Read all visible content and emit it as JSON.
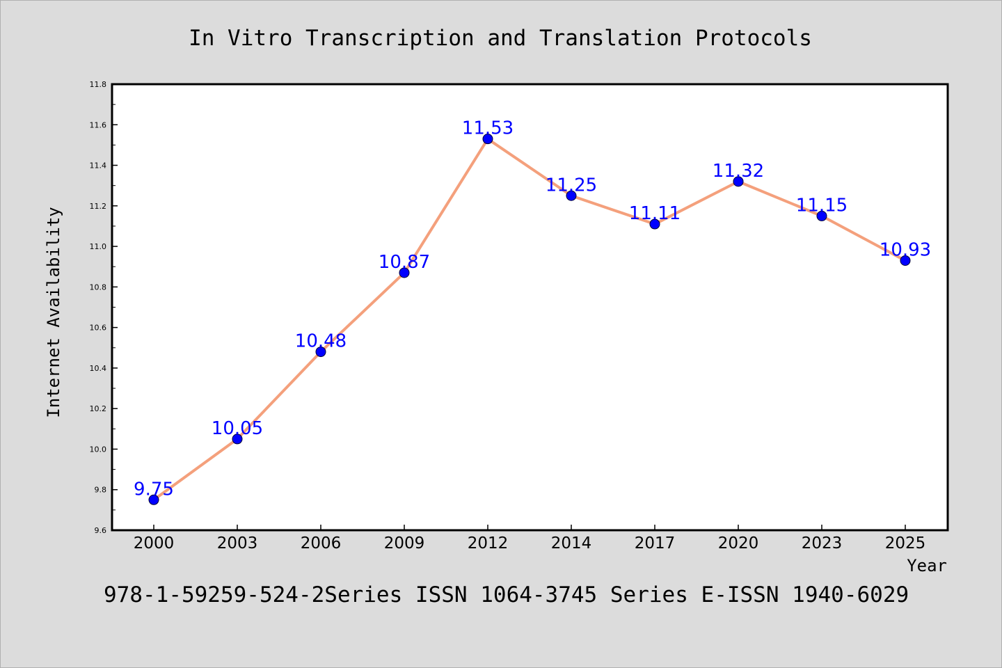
{
  "chart_data": {
    "type": "line",
    "title": "In Vitro Transcription and Translation Protocols",
    "xlabel": "Year",
    "ylabel": "Internet Availability",
    "footer": "978-1-59259-524-2Series ISSN 1064-3745 Series E-ISSN 1940-6029",
    "categories": [
      "2000",
      "2003",
      "2006",
      "2009",
      "2012",
      "2014",
      "2017",
      "2020",
      "2023",
      "2025"
    ],
    "series": [
      {
        "values": [
          9.75,
          10.05,
          10.48,
          10.87,
          11.53,
          11.25,
          11.11,
          11.32,
          11.15,
          10.93
        ],
        "data_labels": [
          "9.75",
          "10.05",
          "10.48",
          "10.87",
          "11.53",
          "11.25",
          "11.11",
          "11.32",
          "11.15",
          "10.93"
        ],
        "line_color": "#f4a07c",
        "marker_color": "#0000ff"
      }
    ],
    "ylim": [
      9.6,
      11.8
    ],
    "yticks": [
      "9.6",
      "9.8",
      "10.0",
      "10.2",
      "10.4",
      "10.6",
      "10.8",
      "11.0",
      "11.2",
      "11.4",
      "11.6",
      "11.8"
    ],
    "grid": false,
    "legend": "none",
    "colors": {
      "background": "#dcdcdc",
      "plot_background": "#ffffff",
      "label_color": "#0000ff"
    }
  }
}
